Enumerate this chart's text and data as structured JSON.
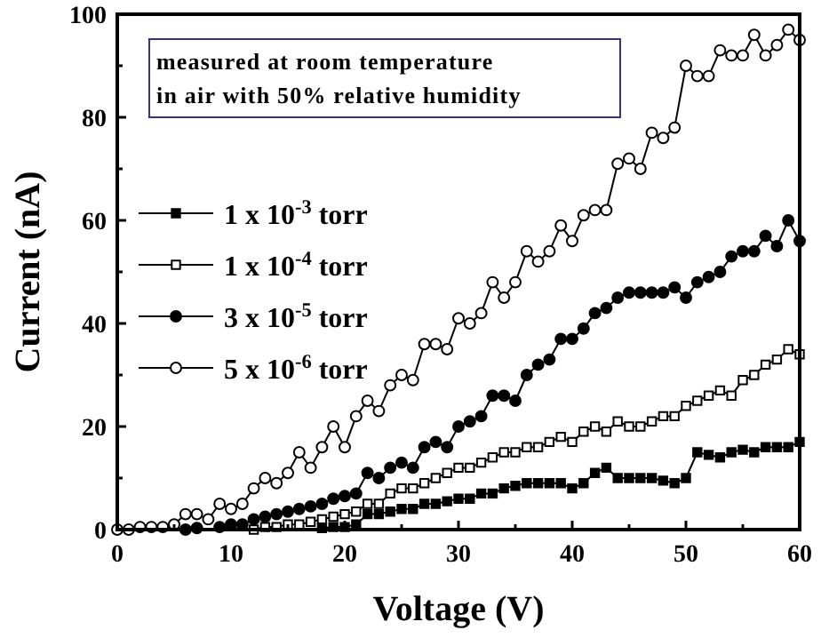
{
  "chart_data": {
    "type": "line",
    "xlabel": "Voltage (V)",
    "ylabel": "Current (nA)",
    "annotations": [
      "measured at room temperature",
      "in air with 50% relative humidity"
    ],
    "xlim": [
      0,
      60
    ],
    "ylim": [
      0,
      100
    ],
    "xticks": [
      0,
      {
        "value": 5,
        "label": null
      },
      10,
      {
        "value": 15,
        "label": null
      },
      20,
      {
        "value": 25,
        "label": null
      },
      30,
      {
        "value": 35,
        "label": null
      },
      40,
      {
        "value": 45,
        "label": null
      },
      50,
      {
        "value": 55,
        "label": null
      },
      60
    ],
    "yticks": [
      0,
      {
        "value": 10,
        "label": null
      },
      20,
      {
        "value": 30,
        "label": null
      },
      40,
      {
        "value": 50,
        "label": null
      },
      60,
      {
        "value": 70,
        "label": null
      },
      80,
      {
        "value": 90,
        "label": null
      },
      100
    ],
    "legend": "left",
    "grid": false,
    "line_style": "solid",
    "series": [
      {
        "name": "1 x 10$^{-3}$ torr",
        "color": "#000000",
        "marker": "square",
        "x": [
          18,
          19,
          20,
          21,
          22,
          23,
          24,
          25,
          26,
          27,
          28,
          29,
          30,
          31,
          32,
          33,
          34,
          35,
          36,
          37,
          38,
          39,
          40,
          41,
          42,
          43,
          44,
          45,
          46,
          47,
          48,
          49,
          50,
          51,
          52,
          53,
          54,
          55,
          56,
          57,
          58,
          59,
          60
        ],
        "values": [
          0.3,
          0.5,
          0.5,
          1,
          3,
          3,
          3.5,
          4,
          4,
          5,
          5,
          5.5,
          6,
          6,
          7,
          7,
          8,
          8.5,
          9,
          9,
          9,
          9,
          8,
          9,
          11,
          12,
          10,
          10,
          10,
          10,
          9.5,
          9,
          10,
          15,
          14.5,
          14,
          15,
          15.5,
          15,
          16,
          16,
          16,
          17
        ]
      },
      {
        "name": "1 x 10$^{-4}$ torr",
        "color": "#ffffff",
        "marker": "square",
        "x": [
          12,
          13,
          14,
          15,
          16,
          17,
          18,
          19,
          20,
          21,
          22,
          23,
          24,
          25,
          26,
          27,
          28,
          29,
          30,
          31,
          32,
          33,
          34,
          35,
          36,
          37,
          38,
          39,
          40,
          41,
          42,
          43,
          44,
          45,
          46,
          47,
          48,
          49,
          50,
          51,
          52,
          53,
          54,
          55,
          56,
          57,
          58,
          59,
          60
        ],
        "values": [
          0,
          0.5,
          0.5,
          1,
          1,
          1.5,
          2,
          2.5,
          3,
          3.5,
          5,
          5,
          7,
          8,
          8,
          9,
          10,
          11,
          12,
          12,
          13,
          14,
          15,
          15,
          16,
          16,
          17,
          18,
          17,
          19,
          20,
          19,
          21,
          20,
          20,
          21,
          22,
          22,
          24,
          25,
          26,
          27,
          26,
          29,
          30,
          32,
          33,
          35,
          34
        ]
      },
      {
        "name": "3 x 10$^{-5}$ torr",
        "color": "#000000",
        "marker": "circle",
        "x": [
          6,
          7,
          8,
          9,
          10,
          11,
          12,
          13,
          14,
          15,
          16,
          17,
          18,
          19,
          20,
          21,
          22,
          23,
          24,
          25,
          26,
          27,
          28,
          29,
          30,
          31,
          32,
          33,
          34,
          35,
          36,
          37,
          38,
          39,
          40,
          41,
          42,
          43,
          44,
          45,
          46,
          47,
          48,
          49,
          50,
          51,
          52,
          53,
          54,
          55,
          56,
          57,
          58,
          59,
          60
        ],
        "values": [
          0,
          0.3,
          null,
          0.5,
          1,
          1,
          2,
          2.5,
          3,
          3.5,
          4,
          4.5,
          5,
          6,
          6.5,
          7,
          11,
          10,
          12,
          13,
          12,
          16,
          17,
          16,
          20,
          21,
          22,
          26,
          26,
          25,
          30,
          32,
          33,
          37,
          37,
          39,
          42,
          43,
          45,
          46,
          46,
          46,
          46,
          47,
          45,
          48,
          49,
          50,
          53,
          54,
          54,
          57,
          55,
          60,
          56
        ]
      },
      {
        "name": "5 x 10$^{-6}$ torr",
        "color": "#ffffff",
        "marker": "circle",
        "x": [
          0,
          1,
          2,
          3,
          4,
          5,
          6,
          7,
          8,
          9,
          10,
          11,
          12,
          13,
          14,
          15,
          16,
          17,
          18,
          19,
          20,
          21,
          22,
          23,
          24,
          25,
          26,
          27,
          28,
          29,
          30,
          31,
          32,
          33,
          34,
          35,
          36,
          37,
          38,
          39,
          40,
          41,
          42,
          43,
          44,
          45,
          46,
          47,
          48,
          49,
          50,
          51,
          52,
          53,
          54,
          55,
          56,
          57,
          58,
          59,
          60
        ],
        "values": [
          0,
          0,
          0.5,
          0.5,
          0.5,
          1,
          3,
          3,
          2,
          5,
          4,
          5,
          8,
          10,
          9,
          11,
          15,
          12,
          16,
          20,
          16,
          22,
          25,
          23,
          28,
          30,
          29,
          36,
          36,
          35,
          41,
          40,
          42,
          48,
          45,
          48,
          54,
          52,
          54,
          59,
          56,
          61,
          62,
          62,
          71,
          72,
          70,
          77,
          76,
          78,
          90,
          88,
          88,
          93,
          92,
          92,
          96,
          92,
          94,
          97,
          95
        ]
      }
    ]
  }
}
